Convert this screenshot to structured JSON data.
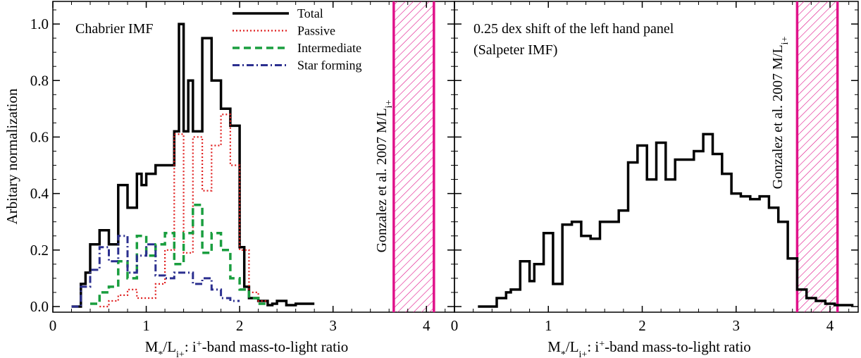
{
  "y_axis_label": "Arbitary normalization",
  "chart_data": [
    {
      "type": "line",
      "panel_label": "Chabrier IMF",
      "xlabel": "M*/L_i+: i+-band mass-to-light ratio",
      "ylabel": "Arbitary normalization",
      "xlim": [
        0,
        4.3
      ],
      "ylim": [
        -0.02,
        1.08
      ],
      "x_ticks": [
        0,
        1,
        2,
        3,
        4
      ],
      "y_ticks": [
        0.0,
        0.2,
        0.4,
        0.6,
        0.8,
        1.0
      ],
      "y_tick_labels": [
        "0.0",
        "0.2",
        "0.4",
        "0.6",
        "0.8",
        "1.0"
      ],
      "grid": false,
      "legend_position": "top-center",
      "annotation": {
        "text": "Gonzalez et al. 2007 M/L_i+",
        "band": [
          3.65,
          4.08
        ],
        "color": "#e0128a"
      },
      "series": [
        {
          "name": "Total",
          "color": "#000000",
          "style": "solid",
          "edges": [
            0.2,
            0.3,
            0.35,
            0.4,
            0.5,
            0.6,
            0.7,
            0.8,
            0.9,
            0.95,
            1.0,
            1.1,
            1.2,
            1.3,
            1.35,
            1.4,
            1.45,
            1.5,
            1.6,
            1.7,
            1.8,
            1.9,
            2.0,
            2.05,
            2.1,
            2.2,
            2.3,
            2.35,
            2.4,
            2.5,
            2.55,
            2.6,
            2.7,
            2.8
          ],
          "values": [
            0.0,
            0.08,
            0.12,
            0.22,
            0.27,
            0.22,
            0.43,
            0.35,
            0.47,
            0.43,
            0.47,
            0.5,
            0.5,
            0.62,
            1.0,
            0.62,
            0.8,
            0.62,
            0.95,
            0.8,
            0.7,
            0.64,
            0.21,
            0.07,
            0.03,
            0.02,
            0.005,
            0.01,
            0.02,
            0.005,
            0.005,
            0.01,
            0.01
          ]
        },
        {
          "name": "Passive",
          "color": "#e02020",
          "style": "dotted",
          "edges": [
            0.5,
            0.6,
            0.7,
            0.8,
            0.9,
            1.0,
            1.1,
            1.2,
            1.3,
            1.4,
            1.5,
            1.6,
            1.7,
            1.8,
            1.9,
            2.0,
            2.1,
            2.2,
            2.3
          ],
          "values": [
            0.0,
            0.02,
            0.04,
            0.06,
            0.03,
            0.03,
            0.08,
            0.2,
            0.61,
            0.19,
            0.6,
            0.41,
            0.57,
            0.68,
            0.5,
            0.2,
            0.05,
            0.02
          ]
        },
        {
          "name": "Intermediate",
          "color": "#1a9e3f",
          "style": "dashed",
          "edges": [
            0.4,
            0.5,
            0.6,
            0.7,
            0.8,
            0.9,
            1.0,
            1.1,
            1.2,
            1.3,
            1.4,
            1.5,
            1.6,
            1.7,
            1.8,
            1.9,
            2.0,
            2.1,
            2.2,
            2.3
          ],
          "values": [
            0.01,
            0.05,
            0.07,
            0.16,
            0.1,
            0.25,
            0.18,
            0.22,
            0.26,
            0.15,
            0.26,
            0.36,
            0.19,
            0.26,
            0.2,
            0.1,
            0.06,
            0.03,
            0.01
          ]
        },
        {
          "name": "Star forming",
          "color": "#2b2f8f",
          "style": "dashdot",
          "edges": [
            0.2,
            0.3,
            0.4,
            0.5,
            0.6,
            0.7,
            0.8,
            0.9,
            1.0,
            1.1,
            1.2,
            1.3,
            1.4,
            1.5,
            1.6,
            1.7,
            1.8,
            1.9,
            2.0
          ],
          "values": [
            0.0,
            0.07,
            0.13,
            0.21,
            0.16,
            0.25,
            0.12,
            0.18,
            0.22,
            0.11,
            0.1,
            0.12,
            0.12,
            0.08,
            0.1,
            0.06,
            0.03,
            0.02
          ]
        }
      ]
    },
    {
      "type": "line",
      "panel_label": "0.25 dex shift of the left hand panel",
      "panel_label_line2": "(Salpeter IMF)",
      "xlabel": "M*/L_i+: i+-band mass-to-light ratio",
      "xlim": [
        0,
        4.3
      ],
      "ylim": [
        -0.02,
        1.08
      ],
      "x_ticks": [
        0,
        1,
        2,
        3,
        4
      ],
      "grid": false,
      "annotation": {
        "text": "Gonzalez et al. 2007 M/L_i+",
        "band": [
          3.65,
          4.08
        ],
        "color": "#e0128a"
      },
      "series": [
        {
          "name": "Total",
          "color": "#000000",
          "style": "solid",
          "edges": [
            0.25,
            0.35,
            0.45,
            0.55,
            0.6,
            0.7,
            0.8,
            0.85,
            0.95,
            1.05,
            1.15,
            1.25,
            1.35,
            1.45,
            1.55,
            1.65,
            1.75,
            1.85,
            1.95,
            2.05,
            2.15,
            2.25,
            2.35,
            2.45,
            2.55,
            2.65,
            2.75,
            2.85,
            2.95,
            3.05,
            3.15,
            3.25,
            3.35,
            3.45,
            3.55,
            3.65,
            3.75,
            3.85,
            3.95,
            4.05,
            4.15,
            4.25
          ],
          "values": [
            0.0,
            0.0,
            0.03,
            0.05,
            0.06,
            0.16,
            0.09,
            0.15,
            0.26,
            0.08,
            0.29,
            0.3,
            0.25,
            0.24,
            0.3,
            0.3,
            0.34,
            0.51,
            0.57,
            0.45,
            0.58,
            0.45,
            0.52,
            0.52,
            0.55,
            0.61,
            0.54,
            0.47,
            0.4,
            0.39,
            0.38,
            0.39,
            0.35,
            0.3,
            0.17,
            0.06,
            0.03,
            0.02,
            0.01,
            0.005,
            0.005
          ]
        }
      ]
    }
  ]
}
